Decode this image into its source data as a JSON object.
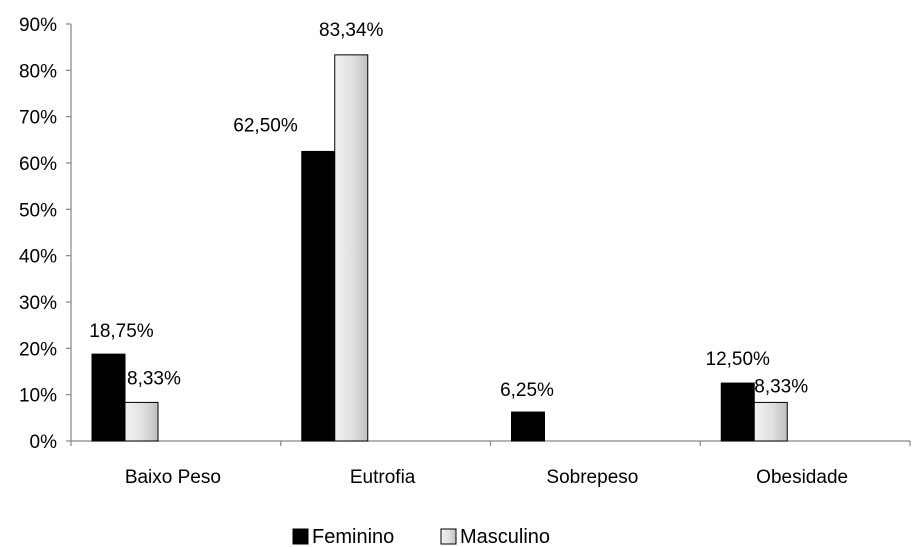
{
  "chart_data": {
    "type": "bar",
    "categories": [
      "Baixo Peso",
      "Eutrofia",
      "Sobrepeso",
      "Obesidade"
    ],
    "series": [
      {
        "name": "Feminino",
        "values": [
          18.75,
          62.5,
          6.25,
          12.5
        ],
        "labels": [
          "18,75%",
          "62,50%",
          "6,25%",
          "12,50%"
        ],
        "color": "#000000"
      },
      {
        "name": "Masculino",
        "values": [
          8.33,
          83.34,
          0,
          8.33
        ],
        "labels": [
          "8,33%",
          "83,34%",
          "",
          "8,33%"
        ],
        "color": "#d9d9d9"
      }
    ],
    "y_ticks": [
      0,
      10,
      20,
      30,
      40,
      50,
      60,
      70,
      80,
      90
    ],
    "y_tick_labels": [
      "0%",
      "10%",
      "20%",
      "30%",
      "40%",
      "50%",
      "60%",
      "70%",
      "80%",
      "90%"
    ],
    "ylim": [
      0,
      90
    ],
    "grid": false,
    "legend_position": "bottom"
  }
}
